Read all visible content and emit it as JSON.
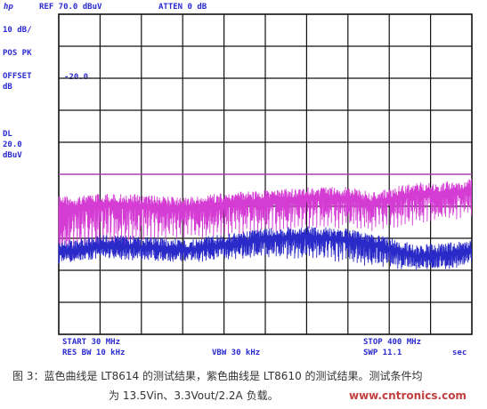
{
  "header": {
    "ref": "REF 70.0 dBuV",
    "atten": "ATTEN 0 dB",
    "logo": "hp"
  },
  "left_labels": {
    "scale": "10 dB/",
    "detector": "POS PK",
    "offset_label": "OFFSET",
    "offset_unit": "dB",
    "offset_value": "-20.0",
    "dl_label": "DL",
    "dl_value": "20.0",
    "dl_unit": "dBuV"
  },
  "footer": {
    "start": "START 30 MHz",
    "res_bw": "RES BW 10 kHz",
    "vbw": "VBW 30 kHz",
    "stop": "STOP 400 MHz",
    "swp": "SWP 11.1",
    "swp_unit": "sec"
  },
  "caption": {
    "line1": "图 3：蓝色曲线是 LT8614 的测试结果，紫色曲线是 LT8610 的测试结果。测试条件均",
    "line2": "为 13.5Vin、3.3Vout/2.2A 负载。",
    "watermark": "www.cntronics.com"
  },
  "chart_data": {
    "type": "line",
    "x_unit": "MHz",
    "y_unit": "dBuV",
    "xlim": [
      30,
      400
    ],
    "ylim": [
      -30,
      70
    ],
    "grid": true,
    "display_line": 20.0,
    "colors": {
      "lt8610": "#d43cd4",
      "lt8614": "#2a2ac8",
      "display_line": "#c040c0",
      "grid": "#111111",
      "text": "#2a2ad0"
    },
    "series": [
      {
        "key": "lt8610",
        "x": [
          30,
          50,
          70,
          90,
          110,
          130,
          150,
          170,
          190,
          210,
          230,
          250,
          270,
          290,
          310,
          330,
          350,
          370,
          390,
          400
        ],
        "y": [
          13,
          13.5,
          14,
          14,
          13.5,
          13,
          13,
          14,
          14.5,
          15,
          15.5,
          16,
          16,
          16,
          14.5,
          16,
          17.5,
          17.5,
          18,
          19
        ],
        "floor": [
          -6,
          -4,
          -2,
          0,
          1,
          1.5,
          1.5,
          2,
          3,
          3.5,
          4,
          4.5,
          5,
          5,
          4,
          5,
          6,
          7,
          8,
          9
        ]
      },
      {
        "key": "lt8614",
        "x": [
          30,
          50,
          70,
          90,
          110,
          130,
          150,
          170,
          190,
          210,
          230,
          250,
          270,
          290,
          310,
          330,
          350,
          370,
          390,
          400
        ],
        "y": [
          -1,
          0,
          1,
          1,
          0.5,
          0,
          0,
          1,
          2,
          3,
          3.5,
          4,
          3.5,
          3,
          1.5,
          0,
          -2,
          -1.5,
          -1,
          -0.5
        ],
        "floor": [
          -6,
          -5,
          -4.5,
          -5,
          -5,
          -5.5,
          -5.5,
          -5,
          -4.5,
          -4,
          -4.5,
          -5,
          -5,
          -6,
          -7,
          -7.5,
          -8,
          -8,
          -7.5,
          -7
        ]
      }
    ]
  }
}
